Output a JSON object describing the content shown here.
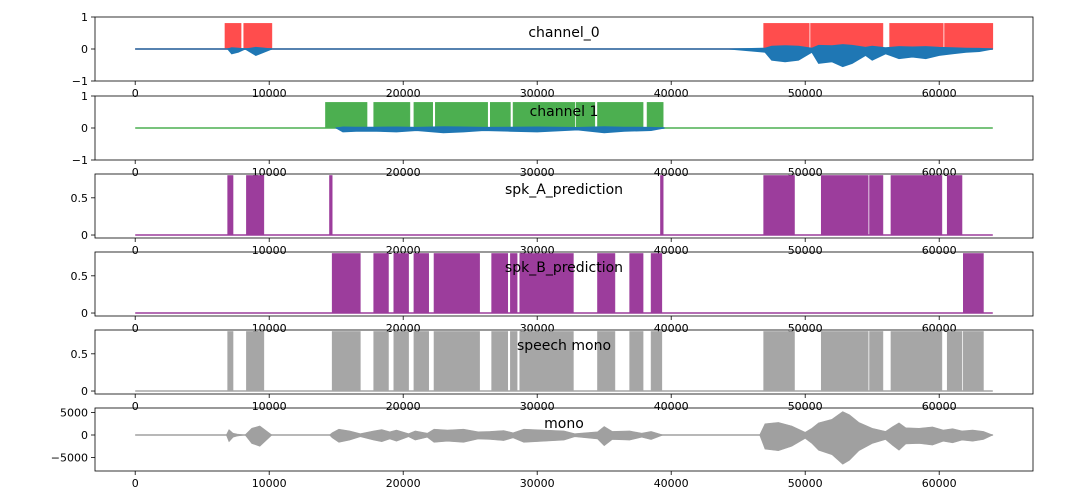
{
  "chart_data": [
    {
      "type": "area",
      "title": "channel_0",
      "xlim": [
        -3000,
        67000
      ],
      "ylim": [
        -1,
        1
      ],
      "yticks": [
        -1,
        0,
        1
      ],
      "xticks": [
        0,
        10000,
        20000,
        30000,
        40000,
        50000,
        60000
      ],
      "series": [
        {
          "kind": "segments",
          "color": "#ff4d4d",
          "y0": 0,
          "y1": 0.8,
          "segments": [
            [
              6700,
              7900
            ],
            [
              8100,
              10200
            ],
            [
              46900,
              50300
            ],
            [
              50400,
              55800
            ],
            [
              56300,
              60300
            ],
            [
              60400,
              64000
            ]
          ]
        },
        {
          "kind": "waveform",
          "color": "#1f77b4",
          "points": [
            [
              0,
              0
            ],
            [
              43000,
              0
            ],
            [
              44300,
              0
            ],
            [
              47000,
              -0.1
            ],
            [
              47500,
              -0.35
            ],
            [
              48500,
              -0.4
            ],
            [
              49500,
              -0.35
            ],
            [
              50500,
              -0.1
            ],
            [
              51000,
              -0.45
            ],
            [
              52000,
              -0.4
            ],
            [
              52800,
              -0.55
            ],
            [
              53500,
              -0.45
            ],
            [
              54500,
              -0.2
            ],
            [
              55000,
              -0.35
            ],
            [
              56000,
              -0.15
            ],
            [
              57000,
              -0.3
            ],
            [
              58000,
              -0.25
            ],
            [
              59000,
              -0.3
            ],
            [
              60000,
              -0.2
            ],
            [
              61000,
              -0.15
            ],
            [
              62000,
              -0.1
            ],
            [
              63000,
              -0.08
            ],
            [
              64000,
              0
            ]
          ]
        },
        {
          "kind": "waveform",
          "color": "#1f77b4",
          "points": [
            [
              6900,
              0
            ],
            [
              7200,
              -0.15
            ],
            [
              7700,
              -0.1
            ],
            [
              8200,
              0
            ],
            [
              8600,
              -0.1
            ],
            [
              9000,
              -0.2
            ],
            [
              9500,
              -0.12
            ],
            [
              10200,
              0
            ]
          ]
        }
      ]
    },
    {
      "type": "area",
      "title": "channel 1",
      "xlim": [
        -3000,
        67000
      ],
      "ylim": [
        -1,
        1
      ],
      "yticks": [
        -1,
        0,
        1
      ],
      "xticks": [
        0,
        10000,
        20000,
        30000,
        40000,
        50000,
        60000
      ],
      "series": [
        {
          "kind": "segments",
          "color": "#4caf50",
          "y0": 0,
          "y1": 0.8,
          "segments": [
            [
              14200,
              17300
            ],
            [
              17800,
              20500
            ],
            [
              20800,
              22200
            ],
            [
              22400,
              26300
            ],
            [
              26500,
              28000
            ],
            [
              28200,
              32800
            ],
            [
              32900,
              34300
            ],
            [
              34500,
              37900
            ],
            [
              38200,
              39400
            ]
          ]
        },
        {
          "kind": "waveform",
          "color": "#1f77b4",
          "points": [
            [
              15000,
              0
            ],
            [
              15500,
              -0.12
            ],
            [
              16500,
              -0.1
            ],
            [
              18000,
              -0.1
            ],
            [
              19500,
              -0.12
            ],
            [
              21000,
              -0.08
            ],
            [
              23000,
              -0.15
            ],
            [
              24500,
              -0.12
            ],
            [
              26000,
              -0.08
            ],
            [
              28000,
              -0.1
            ],
            [
              30000,
              -0.12
            ],
            [
              33000,
              -0.06
            ],
            [
              35000,
              -0.15
            ],
            [
              36500,
              -0.1
            ],
            [
              38500,
              -0.08
            ],
            [
              39500,
              0
            ]
          ]
        }
      ]
    },
    {
      "type": "area",
      "title": "spk_A_prediction",
      "xlim": [
        -3000,
        67000
      ],
      "ylim": [
        -0.04,
        0.82
      ],
      "yticks": [
        0.0,
        0.5
      ],
      "xticks": [
        0,
        10000,
        20000,
        30000,
        40000,
        50000,
        60000
      ],
      "series": [
        {
          "kind": "segments",
          "color": "#9c3d9c",
          "y0": 0,
          "y1": 0.8,
          "segments": [
            [
              6900,
              7300
            ],
            [
              8300,
              9600
            ],
            [
              14500,
              14700
            ],
            [
              39200,
              39400
            ],
            [
              46900,
              49200
            ],
            [
              51200,
              54700
            ],
            [
              54800,
              55800
            ],
            [
              56400,
              60200
            ],
            [
              60600,
              61700
            ]
          ]
        }
      ]
    },
    {
      "type": "area",
      "title": "spk_B_prediction",
      "xlim": [
        -3000,
        67000
      ],
      "ylim": [
        -0.04,
        0.82
      ],
      "yticks": [
        0.0,
        0.5
      ],
      "xticks": [
        0,
        10000,
        20000,
        30000,
        40000,
        50000,
        60000
      ],
      "series": [
        {
          "kind": "segments",
          "color": "#9c3d9c",
          "y0": 0,
          "y1": 0.8,
          "segments": [
            [
              14700,
              16800
            ],
            [
              17800,
              18900
            ],
            [
              19300,
              20400
            ],
            [
              20800,
              21900
            ],
            [
              22300,
              25700
            ],
            [
              26600,
              27800
            ],
            [
              28000,
              28500
            ],
            [
              28700,
              32700
            ],
            [
              34500,
              35800
            ],
            [
              36900,
              37900
            ],
            [
              38500,
              39300
            ],
            [
              61800,
              63300
            ]
          ]
        }
      ]
    },
    {
      "type": "area",
      "title": "speech mono",
      "xlim": [
        -3000,
        67000
      ],
      "ylim": [
        -0.04,
        0.82
      ],
      "yticks": [
        0.0,
        0.5
      ],
      "xticks": [
        0,
        10000,
        20000,
        30000,
        40000,
        50000,
        60000
      ],
      "series": [
        {
          "kind": "segments",
          "color": "#a6a6a6",
          "y0": 0,
          "y1": 0.8,
          "segments": [
            [
              6900,
              7300
            ],
            [
              8300,
              9600
            ],
            [
              14700,
              16800
            ],
            [
              17800,
              18900
            ],
            [
              19300,
              20400
            ],
            [
              20800,
              21900
            ],
            [
              22300,
              25700
            ],
            [
              26600,
              27800
            ],
            [
              28000,
              28500
            ],
            [
              28700,
              32700
            ],
            [
              34500,
              35800
            ],
            [
              36900,
              37900
            ],
            [
              38500,
              39300
            ],
            [
              46900,
              49200
            ],
            [
              51200,
              54700
            ],
            [
              54800,
              55800
            ],
            [
              56400,
              60200
            ],
            [
              60600,
              61700
            ],
            [
              61800,
              63300
            ]
          ]
        }
      ]
    },
    {
      "type": "area",
      "title": "mono",
      "xlim": [
        -3000,
        67000
      ],
      "ylim": [
        -8000,
        6000
      ],
      "yticks": [
        -5000,
        0,
        5000
      ],
      "xticks": [
        0,
        10000,
        20000,
        30000,
        40000,
        50000,
        60000
      ],
      "series": [
        {
          "kind": "envelope",
          "color": "#a0a0a0",
          "points": [
            [
              0,
              0
            ],
            [
              6800,
              0
            ],
            [
              7000,
              1200
            ],
            [
              7300,
              400
            ],
            [
              7600,
              200
            ],
            [
              8200,
              0
            ],
            [
              8700,
              1500
            ],
            [
              9300,
              2000
            ],
            [
              9800,
              900
            ],
            [
              10200,
              0
            ],
            [
              14500,
              0
            ],
            [
              14700,
              500
            ],
            [
              15200,
              1300
            ],
            [
              16000,
              900
            ],
            [
              16800,
              300
            ],
            [
              17800,
              900
            ],
            [
              18400,
              1200
            ],
            [
              19000,
              700
            ],
            [
              19500,
              1100
            ],
            [
              20400,
              300
            ],
            [
              20900,
              900
            ],
            [
              21800,
              400
            ],
            [
              22300,
              1300
            ],
            [
              23300,
              1100
            ],
            [
              24500,
              1300
            ],
            [
              25600,
              700
            ],
            [
              26500,
              800
            ],
            [
              27500,
              1000
            ],
            [
              28200,
              500
            ],
            [
              29000,
              1300
            ],
            [
              30500,
              1100
            ],
            [
              32000,
              900
            ],
            [
              32800,
              300
            ],
            [
              34500,
              700
            ],
            [
              35000,
              1900
            ],
            [
              35600,
              800
            ],
            [
              36900,
              900
            ],
            [
              37800,
              400
            ],
            [
              38500,
              800
            ],
            [
              39400,
              0
            ],
            [
              46600,
              0
            ],
            [
              47000,
              2500
            ],
            [
              48000,
              2800
            ],
            [
              49000,
              2000
            ],
            [
              50000,
              600
            ],
            [
              50500,
              1500
            ],
            [
              51000,
              2700
            ],
            [
              52000,
              3500
            ],
            [
              52800,
              5200
            ],
            [
              53300,
              4500
            ],
            [
              54000,
              2800
            ],
            [
              55000,
              1500
            ],
            [
              56000,
              800
            ],
            [
              56500,
              1800
            ],
            [
              57000,
              2700
            ],
            [
              57500,
              1600
            ],
            [
              58500,
              1500
            ],
            [
              59500,
              1800
            ],
            [
              60300,
              1100
            ],
            [
              61000,
              1400
            ],
            [
              61700,
              900
            ],
            [
              62500,
              1100
            ],
            [
              63300,
              800
            ],
            [
              64000,
              0
            ]
          ],
          "ratio_below": 1.25
        }
      ]
    }
  ]
}
